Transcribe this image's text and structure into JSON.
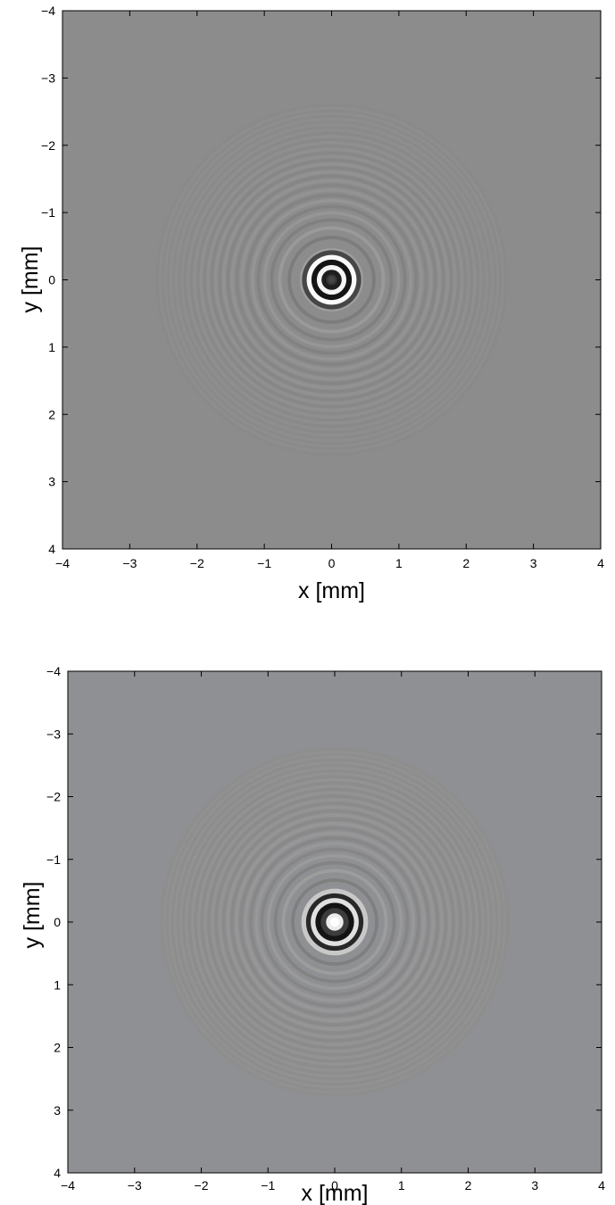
{
  "chart_data": [
    {
      "type": "heatmap",
      "description_of_values": "grayscale intensity image of concentric interference rings centered at (0,0); dark central spot",
      "xlabel": "x [mm]",
      "ylabel": "y [mm]",
      "xlim": [
        -4,
        4
      ],
      "ylim": [
        -4,
        4
      ],
      "y_axis_direction": "reversed",
      "xticks": [
        "−4",
        "−3",
        "−2",
        "−1",
        "0",
        "1",
        "2",
        "3",
        "4"
      ],
      "yticks": [
        "−4",
        "−3",
        "−2",
        "−1",
        "0",
        "1",
        "2",
        "3",
        "4"
      ],
      "center": [
        0,
        0
      ],
      "central_spot": "dark",
      "background_gray": "#8c8c8c",
      "colormap": "gray"
    },
    {
      "type": "heatmap",
      "description_of_values": "grayscale intensity image of concentric interference rings centered at (0,0); bright central spot",
      "xlabel": "x [mm]",
      "ylabel": "y [mm]",
      "xlim": [
        -4,
        4
      ],
      "ylim": [
        -4,
        4
      ],
      "y_axis_direction": "reversed",
      "xticks": [
        "−4",
        "−3",
        "−2",
        "−1",
        "0",
        "1",
        "2",
        "3",
        "4"
      ],
      "yticks": [
        "−4",
        "−3",
        "−2",
        "−1",
        "0",
        "1",
        "2",
        "3",
        "4"
      ],
      "center": [
        0,
        0
      ],
      "central_spot": "bright",
      "background_gray": "#8f9093",
      "colormap": "gray"
    }
  ]
}
